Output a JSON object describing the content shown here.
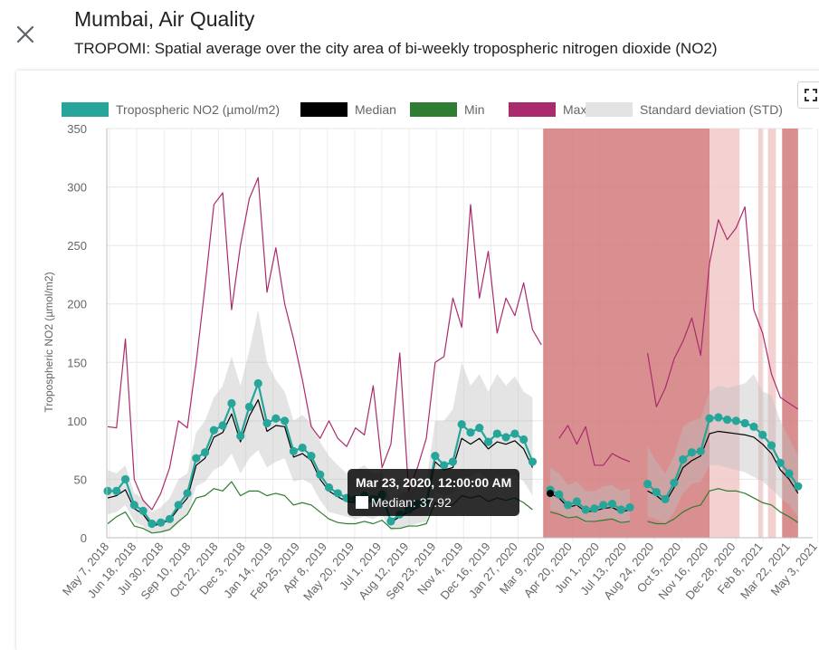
{
  "header": {
    "title": "Mumbai, Air Quality",
    "subtitle": "TROPOMI: Spatial average over the city area of bi-weekly tropospheric nitrogen dioxide (NO2)"
  },
  "icons": {
    "close": "close-icon",
    "fullscreen": "fullscreen-icon"
  },
  "tooltip": {
    "title": "Mar 23, 2020, 12:00:00 AM",
    "label": "Median: 37.92"
  },
  "chart_data": {
    "type": "line",
    "title": "",
    "ylabel": "Tropospheric NO2 (µmol/m2)",
    "ylim": [
      0,
      350
    ],
    "yticks": [
      0,
      50,
      100,
      150,
      200,
      250,
      300,
      350
    ],
    "grid": true,
    "legend_position": "top",
    "x_tick_labels": [
      "May 7, 2018",
      "Jun 18, 2018",
      "Jul 30, 2018",
      "Sep 10, 2018",
      "Oct 22, 2018",
      "Dec 3, 2018",
      "Jan 14, 2019",
      "Feb 25, 2019",
      "Apr 8, 2019",
      "May 20, 2019",
      "Jul 1, 2019",
      "Aug 12, 2019",
      "Sep 23, 2019",
      "Nov 4, 2019",
      "Dec 16, 2019",
      "Jan 27, 2020",
      "Mar 9, 2020",
      "Apr 20, 2020",
      "Jun 1, 2020",
      "Jul 13, 2020",
      "Aug 24, 2020",
      "Oct 5, 2020",
      "Nov 16, 2020",
      "Dec 28, 2020",
      "Feb 8, 2021",
      "Mar 22, 2021",
      "May 3, 2021"
    ],
    "legend": [
      {
        "name": "Tropospheric NO2 (µmol/m2)",
        "color": "#26a69a"
      },
      {
        "name": "Median",
        "color": "#000000"
      },
      {
        "name": "Min",
        "color": "#2e7d32"
      },
      {
        "name": "Max",
        "color": "#aa2b6d"
      },
      {
        "name": "Standard deviation (STD)",
        "color": "#e3e3e3"
      }
    ],
    "series": [
      {
        "name": "Tropospheric NO2 (µmol/m2)",
        "color": "#26a69a",
        "values": [
          40,
          40,
          50,
          28,
          23,
          12,
          13,
          16,
          28,
          38,
          68,
          73,
          92,
          96,
          115,
          87,
          112,
          132,
          98,
          102,
          100,
          74,
          77,
          70,
          54,
          43,
          38,
          34,
          33,
          36,
          33,
          37,
          14,
          20,
          24,
          29,
          30,
          70,
          62,
          65,
          97,
          90,
          94,
          82,
          89,
          86,
          89,
          84,
          65,
          null,
          41,
          37,
          28,
          31,
          24,
          25,
          28,
          29,
          24,
          26,
          null,
          46,
          39,
          33,
          47,
          67,
          73,
          74,
          102,
          103,
          101,
          100,
          98,
          95,
          88,
          79,
          64,
          55,
          44
        ]
      },
      {
        "name": "Median",
        "color": "#000000",
        "values": [
          34,
          36,
          41,
          25,
          20,
          10,
          12,
          15,
          25,
          34,
          62,
          68,
          86,
          90,
          106,
          82,
          104,
          118,
          91,
          96,
          95,
          69,
          72,
          66,
          50,
          40,
          35,
          31,
          30,
          33,
          30,
          35,
          13,
          18,
          22,
          26,
          28,
          65,
          58,
          60,
          85,
          80,
          85,
          76,
          82,
          80,
          83,
          76,
          60,
          null,
          37.92,
          34,
          26,
          28,
          22,
          23,
          25,
          26,
          22,
          24,
          null,
          40,
          36,
          30,
          43,
          60,
          66,
          70,
          89,
          91,
          90,
          89,
          88,
          86,
          80,
          72,
          58,
          50,
          38
        ]
      },
      {
        "name": "Min",
        "color": "#2e7d32",
        "values": [
          12,
          18,
          22,
          10,
          8,
          4,
          5,
          7,
          14,
          20,
          34,
          36,
          42,
          40,
          48,
          36,
          40,
          40,
          36,
          38,
          36,
          28,
          30,
          28,
          22,
          16,
          13,
          12,
          12,
          14,
          12,
          15,
          8,
          8,
          10,
          10,
          12,
          30,
          27,
          28,
          36,
          34,
          36,
          31,
          34,
          32,
          34,
          30,
          24,
          null,
          22,
          20,
          17,
          18,
          14,
          14,
          15,
          16,
          13,
          14,
          null,
          14,
          12,
          12,
          16,
          22,
          26,
          28,
          40,
          42,
          40,
          40,
          38,
          34,
          30,
          28,
          22,
          18,
          13
        ]
      },
      {
        "name": "Max",
        "color": "#aa2b6d",
        "values": [
          95,
          94,
          170,
          50,
          32,
          24,
          38,
          60,
          100,
          94,
          150,
          215,
          285,
          295,
          195,
          250,
          290,
          308,
          210,
          248,
          200,
          170,
          135,
          95,
          85,
          100,
          85,
          78,
          94,
          88,
          130,
          60,
          80,
          158,
          40,
          60,
          85,
          150,
          155,
          205,
          180,
          285,
          205,
          245,
          175,
          205,
          190,
          218,
          178,
          165,
          null,
          85,
          96,
          80,
          95,
          62,
          62,
          72,
          68,
          65,
          null,
          158,
          112,
          128,
          153,
          168,
          188,
          156,
          235,
          272,
          255,
          265,
          283,
          195,
          175,
          140,
          120,
          115,
          110
        ]
      },
      {
        "name": "Standard deviation (STD) upper",
        "color": "#e3e3e3",
        "values": [
          58,
          55,
          62,
          38,
          34,
          22,
          26,
          34,
          50,
          55,
          90,
          100,
          120,
          130,
          155,
          130,
          160,
          195,
          150,
          135,
          125,
          100,
          105,
          98,
          82,
          70,
          62,
          55,
          58,
          62,
          55,
          56,
          30,
          38,
          40,
          45,
          48,
          100,
          100,
          110,
          150,
          130,
          140,
          125,
          140,
          130,
          138,
          125,
          120,
          null,
          60,
          55,
          45,
          48,
          40,
          40,
          44,
          45,
          40,
          42,
          null,
          78,
          65,
          55,
          70,
          95,
          100,
          102,
          125,
          130,
          128,
          130,
          132,
          140,
          125,
          122,
          100,
          85,
          70
        ]
      },
      {
        "name": "Standard deviation (STD) lower",
        "color": "#e3e3e3",
        "values": [
          20,
          22,
          28,
          14,
          10,
          4,
          4,
          6,
          12,
          20,
          44,
          48,
          58,
          62,
          72,
          55,
          68,
          75,
          60,
          65,
          68,
          48,
          50,
          46,
          32,
          22,
          20,
          18,
          16,
          18,
          16,
          20,
          6,
          8,
          10,
          12,
          14,
          40,
          35,
          38,
          52,
          52,
          56,
          48,
          52,
          52,
          54,
          48,
          36,
          null,
          24,
          22,
          16,
          18,
          12,
          14,
          16,
          17,
          12,
          14,
          null,
          18,
          16,
          12,
          22,
          38,
          46,
          48,
          62,
          62,
          60,
          58,
          56,
          52,
          48,
          42,
          34,
          28,
          18
        ]
      }
    ],
    "highlight_bands": [
      {
        "from_index": 49.2,
        "to_index": 68,
        "color": "#d27b7b"
      },
      {
        "from_index": 68,
        "to_index": 71.4,
        "color": "#f1c9c9"
      },
      {
        "from_index": 73.5,
        "to_index": 74,
        "color": "#f1c9c9"
      },
      {
        "from_index": 74.6,
        "to_index": 75.5,
        "color": "#f1c9c9"
      },
      {
        "from_index": 76.2,
        "to_index": 78,
        "color": "#d27b7b"
      }
    ]
  }
}
